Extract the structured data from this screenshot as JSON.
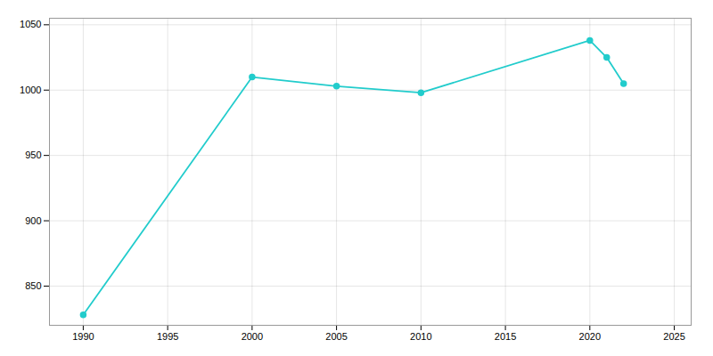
{
  "chart_data": {
    "type": "line",
    "x": [
      1990,
      2000,
      2005,
      2010,
      2020,
      2021,
      2022
    ],
    "values": [
      828,
      1010,
      1003,
      998,
      1038,
      1025,
      1005
    ],
    "color": "#22CCCC",
    "marker": "circle",
    "xlim": [
      1988,
      2026
    ],
    "ylim": [
      820,
      1055
    ],
    "xticks": [
      1990,
      1995,
      2000,
      2005,
      2010,
      2015,
      2020,
      2025
    ],
    "yticks": [
      850,
      900,
      950,
      1000,
      1050
    ],
    "grid": true
  }
}
